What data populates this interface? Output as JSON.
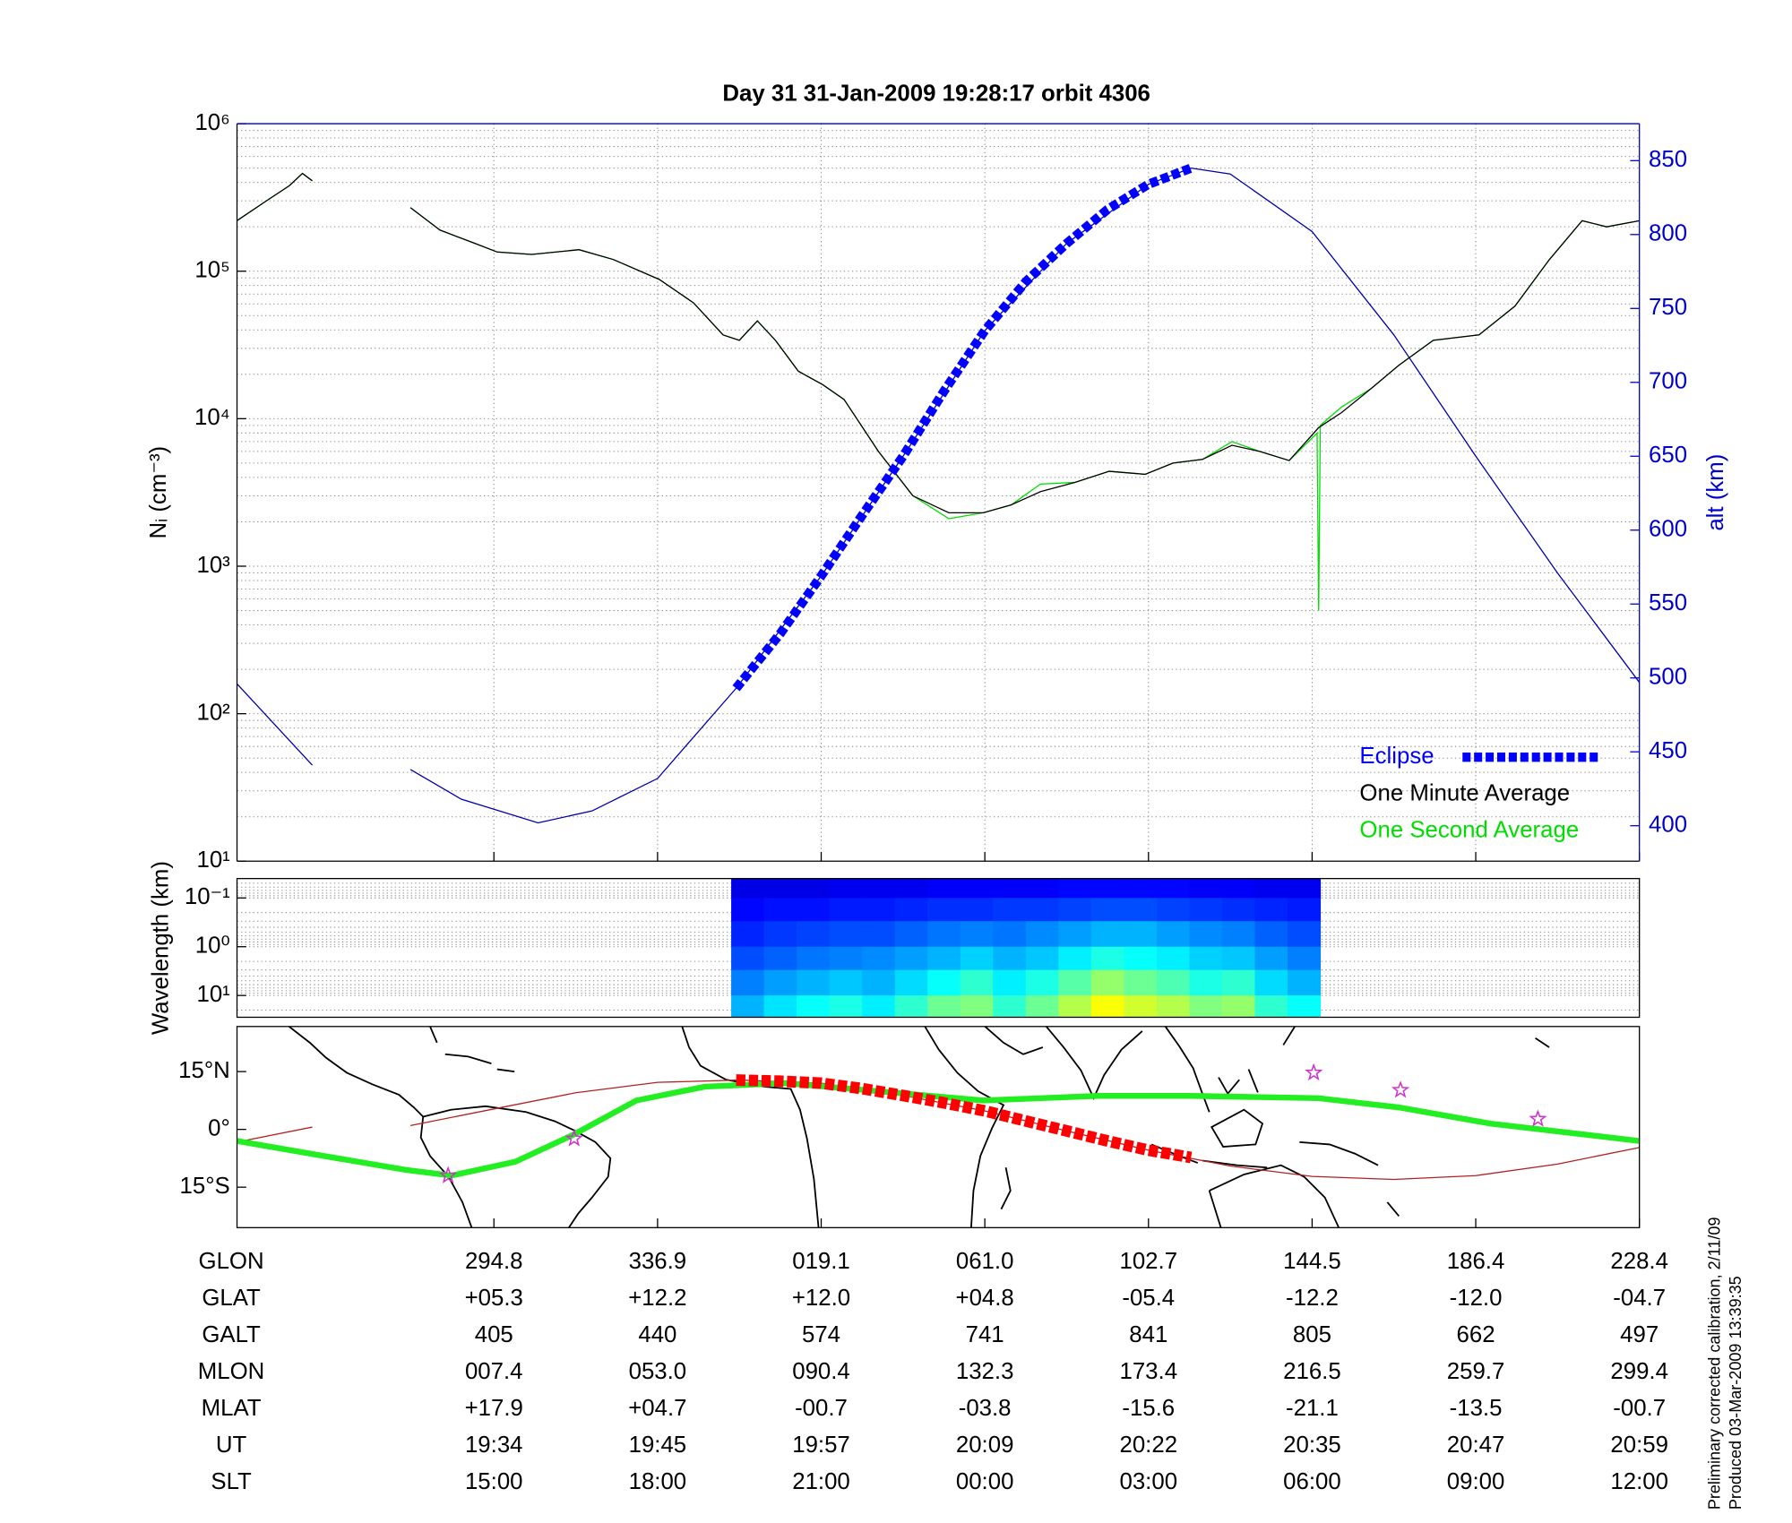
{
  "chart_data": [
    {
      "type": "line",
      "title": "Day 31  31-Jan-2009 19:28:17   orbit 4306",
      "ylabel": "Nᵢ (cm⁻³)",
      "y2label": "alt (km)",
      "log_y": true,
      "grid": true,
      "legend": "lower right",
      "y2color": "#0000cc",
      "xlim": [
        -1.57,
        7
      ],
      "xticks": [
        0,
        1,
        2,
        3,
        4,
        5,
        6,
        7
      ],
      "ylim": [
        10,
        1000000
      ],
      "yticks": [
        {
          "value": 10,
          "label": "10¹"
        },
        {
          "value": 100,
          "label": "10²"
        },
        {
          "value": 1000,
          "label": "10³"
        },
        {
          "value": 10000,
          "label": "10⁴"
        },
        {
          "value": 100000,
          "label": "10⁵"
        },
        {
          "value": 1000000,
          "label": "10⁶"
        }
      ],
      "y2lim": [
        376,
        875
      ],
      "y2ticks": [
        400,
        450,
        500,
        550,
        600,
        650,
        700,
        750,
        800,
        850
      ],
      "series": [
        {
          "axis": "y2",
          "color": "#0000aa",
          "style": "thin",
          "x": [
            -1.57,
            -1.11,
            -0.8,
            -0.51,
            -0.2,
            0.27,
            0.6,
            1.0,
            1.48,
            2.0,
            2.5,
            3.0,
            3.5,
            4.0,
            4.26,
            4.5,
            5.0,
            5.5,
            6.0,
            6.5,
            7.0
          ],
          "values": [
            496,
            441,
            null,
            438,
            418,
            402,
            410,
            432,
            493,
            569,
            650,
            735,
            794,
            834,
            845,
            841,
            802,
            732,
            650,
            571,
            497
          ]
        },
        {
          "name": "One Second Average",
          "color": "#00dd00",
          "style": "thin",
          "x": [
            -1.57,
            -1.39,
            -1.25,
            -1.17,
            -1.11,
            -0.8,
            -0.51,
            -0.33,
            -0.12,
            0.02,
            0.23,
            0.52,
            0.73,
            1.01,
            1.22,
            1.4,
            1.5,
            1.61,
            1.72,
            1.86,
            2.01,
            2.14,
            2.35,
            2.56,
            2.78,
            2.99,
            3.16,
            3.34,
            3.55,
            3.76,
            3.98,
            4.15,
            4.33,
            4.51,
            4.68,
            4.86,
            5.03,
            5.04,
            5.05,
            5.18,
            5.36,
            5.53,
            5.74,
            6.02,
            6.24,
            6.45,
            6.65,
            6.8,
            7.0
          ],
          "values": [
            220000,
            300000,
            380000,
            460000,
            410000,
            null,
            270000,
            190000,
            155000,
            135000,
            130000,
            140000,
            120000,
            88000,
            61000,
            37000,
            34000,
            46000,
            34000,
            21000,
            17000,
            13500,
            6000,
            3000,
            2100,
            2300,
            2600,
            3600,
            3700,
            4400,
            4200,
            5000,
            5300,
            7000,
            6000,
            5200,
            8000,
            500,
            9000,
            12000,
            16000,
            23000,
            34000,
            37000,
            58000,
            120000,
            220000,
            200000,
            220000
          ]
        },
        {
          "name": "One Minute Average",
          "color": "#000000",
          "style": "thin",
          "x": [
            -1.57,
            -1.39,
            -1.25,
            -1.17,
            -1.11,
            -0.8,
            -0.51,
            -0.33,
            -0.12,
            0.02,
            0.23,
            0.52,
            0.73,
            1.01,
            1.22,
            1.4,
            1.5,
            1.61,
            1.72,
            1.86,
            2.01,
            2.14,
            2.35,
            2.56,
            2.78,
            2.99,
            3.16,
            3.34,
            3.55,
            3.76,
            3.98,
            4.15,
            4.33,
            4.51,
            4.68,
            4.86,
            5.04,
            5.18,
            5.36,
            5.53,
            5.74,
            6.02,
            6.24,
            6.45,
            6.65,
            6.8,
            7.0
          ],
          "values": [
            220000,
            300000,
            380000,
            460000,
            410000,
            null,
            270000,
            190000,
            155000,
            135000,
            130000,
            140000,
            120000,
            88000,
            61000,
            37000,
            34000,
            46000,
            34000,
            21000,
            17000,
            13500,
            6000,
            3000,
            2300,
            2300,
            2600,
            3200,
            3700,
            4400,
            4200,
            5000,
            5300,
            6600,
            6000,
            5200,
            8700,
            11000,
            16000,
            23000,
            34000,
            37000,
            58000,
            120000,
            220000,
            200000,
            220000
          ]
        },
        {
          "name": "Eclipse",
          "axis": "y2",
          "color": "#0000ff",
          "style": "dashed",
          "x": [
            1.48,
            1.75,
            2.0,
            2.25,
            2.5,
            2.75,
            3.0,
            3.25,
            3.5,
            3.75,
            4.0,
            4.26
          ],
          "values": [
            493,
            530,
            569,
            610,
            650,
            694,
            735,
            768,
            794,
            817,
            834,
            845
          ]
        }
      ]
    },
    {
      "type": "heatmap",
      "ylabel": "Wavelength (km)",
      "log_y": true,
      "y_reversed": true,
      "grid": true,
      "xlim": [
        -1.57,
        7
      ],
      "ylim": [
        0.04,
        28
      ],
      "yticks": [
        {
          "value": 0.1,
          "label": "10⁻¹"
        },
        {
          "value": 1,
          "label": "10⁰"
        },
        {
          "value": 10,
          "label": "10¹"
        }
      ],
      "x_edges": [
        1.45,
        1.65,
        1.85,
        2.05,
        2.25,
        2.45,
        2.65,
        2.85,
        3.05,
        3.25,
        3.45,
        3.65,
        3.85,
        4.05,
        4.25,
        4.45,
        4.65,
        4.85,
        5.05
      ],
      "y_edges": [
        0.04,
        0.1,
        0.3,
        1,
        3,
        10,
        28
      ],
      "values": [
        [
          0.1,
          0.1,
          0.1,
          0.11,
          0.11,
          0.11,
          0.12,
          0.12,
          0.12,
          0.12,
          0.13,
          0.13,
          0.13,
          0.13,
          0.12,
          0.12,
          0.11,
          0.11
        ],
        [
          0.13,
          0.14,
          0.14,
          0.15,
          0.15,
          0.16,
          0.17,
          0.17,
          0.18,
          0.18,
          0.19,
          0.2,
          0.2,
          0.19,
          0.18,
          0.17,
          0.16,
          0.15
        ],
        [
          0.16,
          0.18,
          0.19,
          0.2,
          0.2,
          0.22,
          0.24,
          0.25,
          0.24,
          0.26,
          0.28,
          0.3,
          0.3,
          0.28,
          0.26,
          0.25,
          0.22,
          0.2
        ],
        [
          0.2,
          0.22,
          0.24,
          0.25,
          0.26,
          0.28,
          0.3,
          0.33,
          0.3,
          0.32,
          0.36,
          0.4,
          0.38,
          0.36,
          0.33,
          0.32,
          0.28,
          0.25
        ],
        [
          0.25,
          0.28,
          0.3,
          0.32,
          0.3,
          0.34,
          0.38,
          0.42,
          0.36,
          0.4,
          0.46,
          0.52,
          0.48,
          0.45,
          0.4,
          0.42,
          0.34,
          0.3
        ],
        [
          0.3,
          0.35,
          0.38,
          0.4,
          0.36,
          0.42,
          0.48,
          0.5,
          0.42,
          0.48,
          0.55,
          0.62,
          0.58,
          0.55,
          0.5,
          0.52,
          0.42,
          0.38
        ]
      ]
    },
    {
      "type": "map",
      "xlim": [
        -1.57,
        7
      ],
      "xticks": [
        0,
        1,
        2,
        3,
        4,
        5,
        6,
        7
      ],
      "ylim": [
        -25.5,
        26.7
      ],
      "yticks": [
        {
          "value": 15,
          "label": "15°N"
        },
        {
          "value": 0,
          "label": "0°"
        },
        {
          "value": -15,
          "label": "15°S"
        }
      ],
      "series": [
        {
          "color": "#b22222",
          "style": "thin",
          "x": [
            -1.57,
            -1.11,
            -0.8,
            -0.51,
            0,
            0.5,
            1,
            1.5,
            2,
            2.5,
            3,
            3.5,
            4,
            4.5,
            5,
            5.5,
            6,
            6.5,
            7
          ],
          "values": [
            -3.3,
            0.6,
            null,
            1.0,
            5.3,
            9.5,
            12.2,
            12.8,
            12.0,
            8.8,
            4.8,
            -0.4,
            -5.4,
            -9.5,
            -12.2,
            -13,
            -12.0,
            -9,
            -4.7
          ]
        },
        {
          "color": "#22ee22",
          "style": "thick",
          "x": [
            -1.57,
            -1.04,
            -0.54,
            -0.26,
            0.13,
            0.48,
            0.87,
            1.29,
            1.79,
            2.35,
            2.99,
            3.69,
            4.26,
            5.04,
            5.53,
            6.09,
            7.0
          ],
          "values": [
            -3,
            -6.9,
            -10.5,
            -12,
            -8.4,
            -1.5,
            7.5,
            11.1,
            12,
            9.9,
            7.5,
            8.7,
            8.7,
            8.1,
            5.7,
            1.5,
            -3
          ]
        },
        {
          "color": "#ff0000",
          "style": "dashed",
          "x": [
            1.48,
            1.75,
            2.0,
            2.25,
            2.5,
            2.75,
            3.0,
            3.25,
            3.5,
            3.75,
            4.0,
            4.26
          ],
          "values": [
            12.8,
            12.5,
            12.0,
            10.6,
            8.8,
            6.9,
            4.8,
            2.2,
            -0.4,
            -3,
            -5.4,
            -7.3
          ]
        },
        {
          "color": "#cc33cc",
          "style": "markers",
          "x": [
            -0.28,
            0.49,
            5.01,
            5.54,
            6.38
          ],
          "values": [
            -12,
            -2.4,
            14.7,
            10.2,
            2.7
          ]
        }
      ]
    }
  ],
  "table": {
    "row_labels": [
      "GLON",
      "GLAT",
      "GALT",
      "MLON",
      "MLAT",
      "UT",
      "SLT"
    ],
    "rows": [
      [
        "294.8",
        "336.9",
        "019.1",
        "061.0",
        "102.7",
        "144.5",
        "186.4",
        "228.4"
      ],
      [
        "+05.3",
        "+12.2",
        "+12.0",
        "+04.8",
        "-05.4",
        "-12.2",
        "-12.0",
        "-04.7"
      ],
      [
        "405",
        "440",
        "574",
        "741",
        "841",
        "805",
        "662",
        "497"
      ],
      [
        "007.4",
        "053.0",
        "090.4",
        "132.3",
        "173.4",
        "216.5",
        "259.7",
        "299.4"
      ],
      [
        "+17.9",
        "+04.7",
        "-00.7",
        "-03.8",
        "-15.6",
        "-21.1",
        "-13.5",
        "-00.7"
      ],
      [
        "19:34",
        "19:45",
        "19:57",
        "20:09",
        "20:22",
        "20:35",
        "20:47",
        "20:59"
      ],
      [
        "15:00",
        "18:00",
        "21:00",
        "00:00",
        "03:00",
        "06:00",
        "09:00",
        "12:00"
      ]
    ]
  },
  "footnote": [
    "Preliminary corrected calibration, 2/11/09",
    "Produced 03-Mar-2009 13:39:35"
  ]
}
